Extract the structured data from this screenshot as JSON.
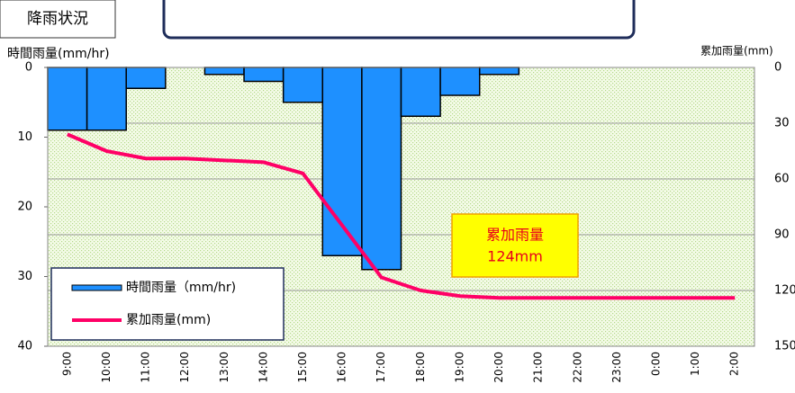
{
  "chart_data": {
    "type": "bar",
    "title": "降雨状況",
    "y_label": "時間雨量(mm/hr)",
    "y2_label": "累加雨量(mm)",
    "categories": [
      "9:00",
      "10:00",
      "11:00",
      "12:00",
      "13:00",
      "14:00",
      "15:00",
      "16:00",
      "17:00",
      "18:00",
      "19:00",
      "20:00",
      "21:00",
      "22:00",
      "23:00",
      "0:00",
      "1:00",
      "2:00"
    ],
    "series": [
      {
        "name": "時間雨量（mm/hr)",
        "type": "bar",
        "color": "#1e90ff",
        "values": [
          9,
          9,
          3,
          0,
          1,
          2,
          5,
          27,
          29,
          7,
          4,
          1,
          0,
          0,
          0,
          0,
          0,
          0
        ]
      },
      {
        "name": "累加雨量(mm)",
        "type": "line",
        "axis": "y2",
        "color": "#ff0066",
        "values": [
          36,
          45,
          49,
          49,
          50,
          51,
          57,
          85,
          113,
          120,
          123,
          124,
          124,
          124,
          124,
          124,
          124,
          124
        ]
      }
    ],
    "ylim": [
      0,
      40
    ],
    "yticks": [
      0,
      10,
      20,
      30,
      40
    ],
    "y_inverted": true,
    "y2lim": [
      0,
      150
    ],
    "y2ticks": [
      0,
      30,
      60,
      90,
      120,
      150
    ],
    "y2_inverted": true,
    "grid": true,
    "annotation": [
      "累加雨量",
      "124mm"
    ]
  }
}
